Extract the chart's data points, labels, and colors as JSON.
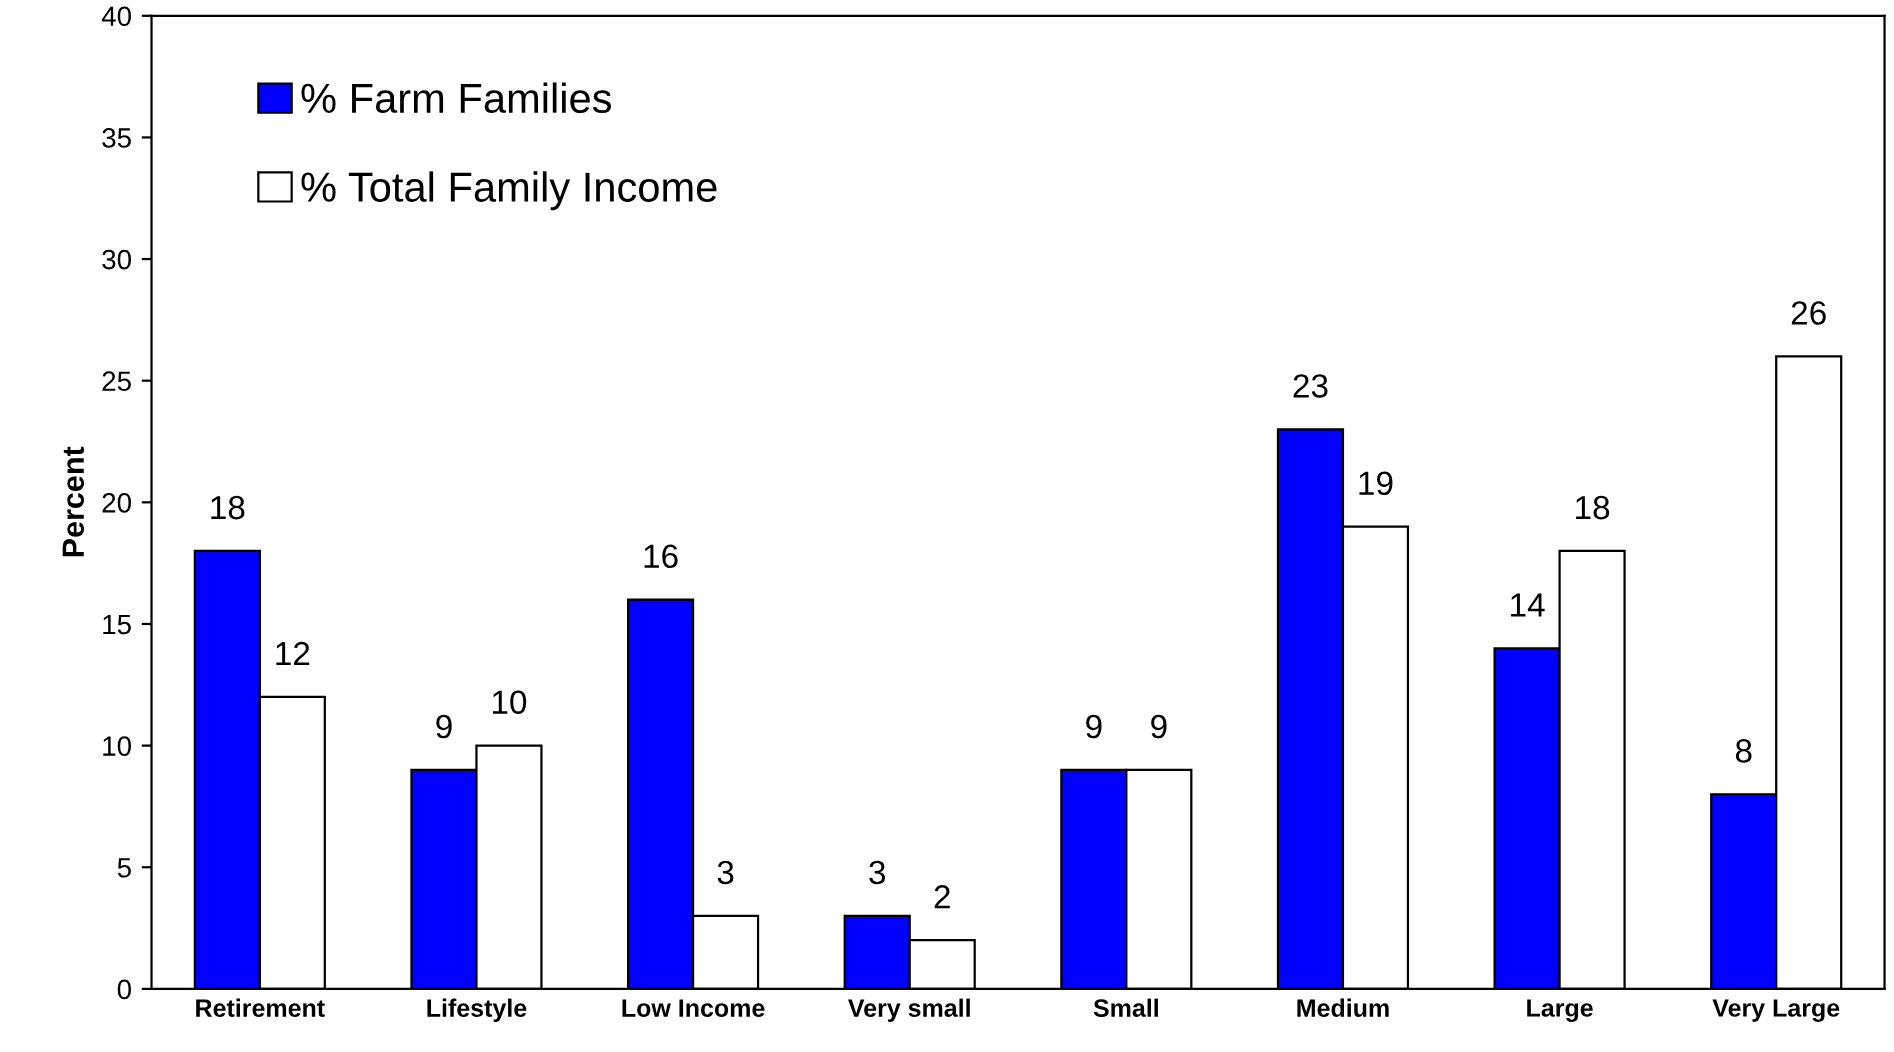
{
  "chart_data": {
    "type": "bar",
    "ylabel": "Percent",
    "categories": [
      "Retirement",
      "Lifestyle",
      "Low Income",
      "Very small",
      "Small",
      "Medium",
      "Large",
      "Very Large"
    ],
    "series": [
      {
        "name": "% Farm Families",
        "color": "#0000ff",
        "values": [
          18,
          9,
          16,
          3,
          9,
          23,
          14,
          8
        ]
      },
      {
        "name": "% Total Family Income",
        "color": "#ffffff",
        "values": [
          12,
          10,
          3,
          2,
          9,
          19,
          18,
          26
        ]
      }
    ],
    "ylim": [
      0,
      40
    ],
    "yticks": [
      0,
      5,
      10,
      15,
      20,
      25,
      30,
      35,
      40
    ],
    "grid": false,
    "legend": "top left",
    "data_labels": true
  }
}
